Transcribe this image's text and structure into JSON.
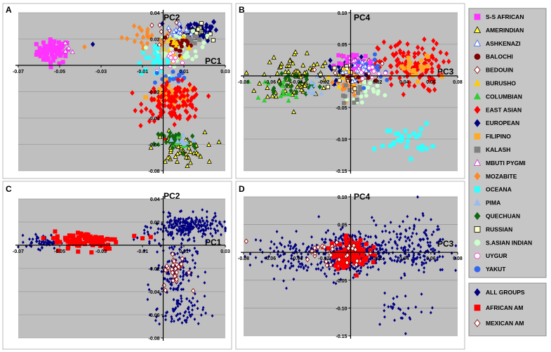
{
  "panel_labels": [
    "A",
    "B",
    "C",
    "D"
  ],
  "legend_main": [
    {
      "label": "S-S AFRICAN",
      "icon": "square",
      "color": "#ff33ff",
      "stroke": "#ff33ff"
    },
    {
      "label": "AMERINDIAN",
      "icon": "triangle",
      "color": "#ffff33",
      "stroke": "#000000"
    },
    {
      "label": "ASHKENAZI",
      "icon": "triangle",
      "color": "#ffffff",
      "stroke": "#3366ff"
    },
    {
      "label": "BALOCHI",
      "icon": "circle",
      "color": "#800000",
      "stroke": "#800000"
    },
    {
      "label": "BEDOUIN",
      "icon": "diamond",
      "color": "#ffffff",
      "stroke": "#800000"
    },
    {
      "label": "BURUSHO",
      "icon": "triangle",
      "color": "#ffcc00",
      "stroke": "#ffcc00"
    },
    {
      "label": "COLUMBIAN",
      "icon": "triangle",
      "color": "#33cc33",
      "stroke": "#33cc33"
    },
    {
      "label": "EAST ASIAN",
      "icon": "diamond",
      "color": "#ff0000",
      "stroke": "#ff0000"
    },
    {
      "label": "EUROPEAN",
      "icon": "diamond",
      "color": "#000080",
      "stroke": "#000080"
    },
    {
      "label": "FILIPINO",
      "icon": "square",
      "color": "#ffaa22",
      "stroke": "#ffaa22"
    },
    {
      "label": "KALASH",
      "icon": "square",
      "color": "#808080",
      "stroke": "#808080"
    },
    {
      "label": "MBUTI PYGMI",
      "icon": "triangle",
      "color": "#ffffff",
      "stroke": "#cc33cc"
    },
    {
      "label": "MOZABITE",
      "icon": "diamond",
      "color": "#ff8822",
      "stroke": "#ff8822"
    },
    {
      "label": "OCEANA",
      "icon": "square",
      "color": "#33ffff",
      "stroke": "#33ffff"
    },
    {
      "label": "PIMA",
      "icon": "triangle",
      "color": "#99bbee",
      "stroke": "#99bbee"
    },
    {
      "label": "QUECHUAN",
      "icon": "diamond",
      "color": "#116611",
      "stroke": "#116611"
    },
    {
      "label": "RUSSIAN",
      "icon": "square",
      "color": "#ffffcc",
      "stroke": "#000000"
    },
    {
      "label": "S.ASIAN INDIAN",
      "icon": "circle",
      "color": "#ccffcc",
      "stroke": "#ccffcc"
    },
    {
      "label": "UYGUR",
      "icon": "circle",
      "color": "#ffffff",
      "stroke": "#ff33cc"
    },
    {
      "label": "YAKUT",
      "icon": "circle",
      "color": "#3366ee",
      "stroke": "#3366ee"
    }
  ],
  "legend_admix": [
    {
      "label": "ALL GROUPS",
      "icon": "diamond",
      "color": "#000080",
      "stroke": "#000080"
    },
    {
      "label": "AFRICAN AM",
      "icon": "square",
      "color": "#ff0000",
      "stroke": "#ff0000"
    },
    {
      "label": "MEXICAN AM",
      "icon": "diamond",
      "color": "#ffffff",
      "stroke": "#800000"
    }
  ],
  "chart_data": [
    {
      "panel": "A",
      "type": "scatter",
      "xlabel": "PC1",
      "ylabel": "PC2",
      "xlim": [
        -0.07,
        0.03
      ],
      "ylim": [
        -0.08,
        0.04
      ],
      "xticks": [
        -0.07,
        -0.05,
        -0.03,
        -0.01,
        0.01,
        0.03
      ],
      "xtick_labels": [
        "-0.07",
        "-0.05",
        "-0.03",
        "-0.01",
        "0.01",
        "0.03"
      ],
      "yticks": [
        -0.08,
        -0.06,
        -0.04,
        -0.02,
        0.02,
        0.04
      ],
      "ytick_labels": [
        "-0.08",
        "-0.06",
        "-0.04",
        "-0.02",
        "0.02",
        "0.04"
      ],
      "clusters": [
        {
          "group": "S-S AFRICAN",
          "cx": -0.053,
          "cy": 0.0105,
          "sx": 0.004,
          "sy": 0.0045,
          "n": 70
        },
        {
          "group": "MBUTI PYGMI",
          "cx": -0.046,
          "cy": 0.012,
          "sx": 0.002,
          "sy": 0.002,
          "n": 4
        },
        {
          "group": "MOZABITE",
          "cx": -0.007,
          "cy": 0.019,
          "sx": 0.006,
          "sy": 0.005,
          "n": 25
        },
        {
          "group": "BEDOUIN",
          "cx": 0.006,
          "cy": 0.024,
          "sx": 0.005,
          "sy": 0.006,
          "n": 25
        },
        {
          "group": "EUROPEAN",
          "cx": 0.017,
          "cy": 0.027,
          "sx": 0.005,
          "sy": 0.004,
          "n": 55
        },
        {
          "group": "RUSSIAN",
          "cx": 0.016,
          "cy": 0.025,
          "sx": 0.003,
          "sy": 0.003,
          "n": 20
        },
        {
          "group": "ASHKENAZI",
          "cx": 0.008,
          "cy": 0.025,
          "sx": 0.003,
          "sy": 0.003,
          "n": 15
        },
        {
          "group": "KALASH",
          "cx": 0.012,
          "cy": 0.02,
          "sx": 0.002,
          "sy": 0.002,
          "n": 10
        },
        {
          "group": "S.ASIAN INDIAN",
          "cx": 0.009,
          "cy": 0.012,
          "sx": 0.006,
          "sy": 0.006,
          "n": 40
        },
        {
          "group": "BALOCHI",
          "cx": 0.008,
          "cy": 0.016,
          "sx": 0.004,
          "sy": 0.004,
          "n": 20
        },
        {
          "group": "BURUSHO",
          "cx": 0.006,
          "cy": 0.013,
          "sx": 0.004,
          "sy": 0.004,
          "n": 15
        },
        {
          "group": "OCEANA",
          "cx": -0.005,
          "cy": 0.003,
          "sx": 0.004,
          "sy": 0.005,
          "n": 25
        },
        {
          "group": "UYGUR",
          "cx": 0.005,
          "cy": 0.003,
          "sx": 0.004,
          "sy": 0.004,
          "n": 10
        },
        {
          "group": "YAKUT",
          "cx": 0.004,
          "cy": -0.01,
          "sx": 0.005,
          "sy": 0.005,
          "n": 20
        },
        {
          "group": "FILIPINO",
          "cx": 0.004,
          "cy": -0.024,
          "sx": 0.006,
          "sy": 0.004,
          "n": 40
        },
        {
          "group": "EAST ASIAN",
          "cx": 0.005,
          "cy": -0.028,
          "sx": 0.007,
          "sy": 0.007,
          "n": 130
        },
        {
          "group": "AMERINDIAN",
          "cx": 0.008,
          "cy": -0.063,
          "sx": 0.006,
          "sy": 0.006,
          "n": 55
        },
        {
          "group": "COLUMBIAN",
          "cx": 0.006,
          "cy": -0.06,
          "sx": 0.004,
          "sy": 0.004,
          "n": 15
        },
        {
          "group": "QUECHUAN",
          "cx": 0.006,
          "cy": -0.058,
          "sx": 0.005,
          "sy": 0.005,
          "n": 25
        },
        {
          "group": "PIMA",
          "cx": 0.008,
          "cy": -0.057,
          "sx": 0.004,
          "sy": 0.003,
          "n": 10
        }
      ],
      "points": [
        {
          "group": "MOZABITE",
          "x": -0.038,
          "y": 0.014
        },
        {
          "group": "EUROPEAN",
          "x": -0.034,
          "y": 0.016
        },
        {
          "group": "MOZABITE",
          "x": -0.02,
          "y": 0.021
        }
      ]
    },
    {
      "panel": "B",
      "type": "scatter",
      "xlabel": "PC3",
      "ylabel": "PC4",
      "xlim": [
        -0.08,
        0.08
      ],
      "ylim": [
        -0.15,
        0.1
      ],
      "xticks": [
        -0.08,
        -0.06,
        -0.04,
        -0.02,
        0.02,
        0.04,
        0.06,
        0.08
      ],
      "xtick_labels": [
        "-0.08",
        "-0.06",
        "-0.04",
        "-0.02",
        "0.02",
        "0.04",
        "0.06",
        "0.08"
      ],
      "yticks": [
        -0.15,
        -0.1,
        -0.05,
        0.05,
        0.1
      ],
      "ytick_labels": [
        "-0.15",
        "-0.10",
        "-0.05",
        "0.05",
        "0.10"
      ],
      "clusters": [
        {
          "group": "AMERINDIAN",
          "cx": -0.04,
          "cy": 0.0,
          "sx": 0.013,
          "sy": 0.02,
          "n": 80
        },
        {
          "group": "COLUMBIAN",
          "cx": -0.05,
          "cy": -0.02,
          "sx": 0.01,
          "sy": 0.01,
          "n": 15
        },
        {
          "group": "QUECHUAN",
          "cx": -0.045,
          "cy": -0.012,
          "sx": 0.012,
          "sy": 0.012,
          "n": 25
        },
        {
          "group": "PIMA",
          "cx": -0.03,
          "cy": -0.02,
          "sx": 0.008,
          "sy": 0.008,
          "n": 10
        },
        {
          "group": "EAST ASIAN",
          "cx": 0.045,
          "cy": 0.015,
          "sx": 0.012,
          "sy": 0.02,
          "n": 120
        },
        {
          "group": "FILIPINO",
          "cx": 0.05,
          "cy": 0.01,
          "sx": 0.008,
          "sy": 0.012,
          "n": 20
        },
        {
          "group": "OCEANA",
          "cx": 0.04,
          "cy": -0.1,
          "sx": 0.01,
          "sy": 0.012,
          "n": 30
        },
        {
          "group": "EUROPEAN",
          "cx": 0.0,
          "cy": 0.01,
          "sx": 0.008,
          "sy": 0.012,
          "n": 40
        },
        {
          "group": "BEDOUIN",
          "cx": 0.0,
          "cy": 0.005,
          "sx": 0.009,
          "sy": 0.012,
          "n": 25
        },
        {
          "group": "MOZABITE",
          "cx": 0.0,
          "cy": -0.01,
          "sx": 0.008,
          "sy": 0.01,
          "n": 20
        },
        {
          "group": "S-S AFRICAN",
          "cx": 0.003,
          "cy": 0.02,
          "sx": 0.007,
          "sy": 0.008,
          "n": 40
        },
        {
          "group": "MBUTI PYGMI",
          "cx": 0.008,
          "cy": 0.012,
          "sx": 0.006,
          "sy": 0.008,
          "n": 15
        },
        {
          "group": "RUSSIAN",
          "cx": 0.0,
          "cy": 0.0,
          "sx": 0.006,
          "sy": 0.01,
          "n": 15
        },
        {
          "group": "S.ASIAN INDIAN",
          "cx": 0.01,
          "cy": -0.02,
          "sx": 0.006,
          "sy": 0.01,
          "n": 25
        },
        {
          "group": "KALASH",
          "cx": 0.0,
          "cy": -0.03,
          "sx": 0.006,
          "sy": 0.008,
          "n": 10
        },
        {
          "group": "YAKUT",
          "cx": 0.02,
          "cy": 0.01,
          "sx": 0.008,
          "sy": 0.01,
          "n": 15
        },
        {
          "group": "UYGUR",
          "cx": 0.012,
          "cy": 0.005,
          "sx": 0.007,
          "sy": 0.008,
          "n": 10
        },
        {
          "group": "BURUSHO",
          "cx": -0.002,
          "cy": 0.0,
          "sx": 0.006,
          "sy": 0.008,
          "n": 10
        },
        {
          "group": "BALOCHI",
          "cx": 0.002,
          "cy": -0.005,
          "sx": 0.006,
          "sy": 0.008,
          "n": 10
        },
        {
          "group": "ASHKENAZI",
          "cx": 0.002,
          "cy": 0.01,
          "sx": 0.006,
          "sy": 0.008,
          "n": 10
        }
      ],
      "points": []
    },
    {
      "panel": "C",
      "type": "scatter",
      "xlabel": "PC1",
      "ylabel": "PC2",
      "xlim": [
        -0.07,
        0.03
      ],
      "ylim": [
        -0.08,
        0.04
      ],
      "xticks": [
        -0.07,
        -0.05,
        -0.03,
        -0.01,
        0.01,
        0.03
      ],
      "xtick_labels": [
        "-0.07",
        "-0.05",
        "-0.03",
        "-0.01",
        "0.01",
        "0.03"
      ],
      "yticks": [
        -0.08,
        -0.06,
        -0.04,
        -0.02,
        0.02,
        0.04
      ],
      "ytick_labels": [
        "-0.08",
        "-0.06",
        "-0.04",
        "-0.02",
        "0.02",
        "0.04"
      ],
      "clusters": [
        {
          "group": "ALL GROUPS",
          "cx": 0.012,
          "cy": 0.016,
          "sx": 0.008,
          "sy": 0.005,
          "n": 230
        },
        {
          "group": "ALL GROUPS",
          "cx": 0.006,
          "cy": -0.02,
          "sx": 0.005,
          "sy": 0.012,
          "n": 130
        },
        {
          "group": "ALL GROUPS",
          "cx": 0.008,
          "cy": -0.058,
          "sx": 0.006,
          "sy": 0.007,
          "n": 70
        },
        {
          "group": "ALL GROUPS",
          "cx": -0.058,
          "cy": 0.003,
          "sx": 0.004,
          "sy": 0.003,
          "n": 55
        },
        {
          "group": "ALL GROUPS",
          "cx": -0.005,
          "cy": 0.008,
          "sx": 0.005,
          "sy": 0.005,
          "n": 15
        },
        {
          "group": "AFRICAN AM",
          "cx": -0.037,
          "cy": 0.004,
          "sx": 0.008,
          "sy": 0.004,
          "n": 95
        },
        {
          "group": "MEXICAN AM",
          "cx": 0.006,
          "cy": -0.022,
          "sx": 0.003,
          "sy": 0.008,
          "n": 30
        }
      ],
      "points": [
        {
          "group": "AFRICAN AM",
          "x": -0.014,
          "y": 0.008
        },
        {
          "group": "AFRICAN AM",
          "x": -0.01,
          "y": 0.006
        },
        {
          "group": "AFRICAN AM",
          "x": -0.006,
          "y": 0.007
        }
      ]
    },
    {
      "panel": "D",
      "type": "scatter",
      "xlabel": "PC3",
      "ylabel": "PC4",
      "xlim": [
        -0.08,
        0.08
      ],
      "ylim": [
        -0.15,
        0.1
      ],
      "xticks": [
        -0.08,
        -0.06,
        -0.04,
        -0.02,
        0.02,
        0.04,
        0.06,
        0.08
      ],
      "xtick_labels": [
        "-0.08",
        "-0.06",
        "-0.04",
        "-0.02",
        "0.02",
        "0.04",
        "0.06",
        "0.08"
      ],
      "yticks": [
        -0.15,
        -0.1,
        -0.05,
        0.05,
        0.1
      ],
      "ytick_labels": [
        "-0.15",
        "-0.10",
        "-0.05",
        "0.05",
        "0.10"
      ],
      "clusters": [
        {
          "group": "ALL GROUPS",
          "cx": 0.0,
          "cy": 0.0,
          "sx": 0.012,
          "sy": 0.018,
          "n": 350
        },
        {
          "group": "ALL GROUPS",
          "cx": -0.045,
          "cy": -0.005,
          "sx": 0.015,
          "sy": 0.02,
          "n": 110
        },
        {
          "group": "ALL GROUPS",
          "cx": 0.045,
          "cy": 0.01,
          "sx": 0.014,
          "sy": 0.025,
          "n": 180
        },
        {
          "group": "ALL GROUPS",
          "cx": 0.04,
          "cy": -0.1,
          "sx": 0.012,
          "sy": 0.015,
          "n": 30
        },
        {
          "group": "AFRICAN AM",
          "cx": 0.0,
          "cy": -0.002,
          "sx": 0.007,
          "sy": 0.013,
          "n": 110
        },
        {
          "group": "MEXICAN AM",
          "cx": -0.015,
          "cy": 0.0,
          "sx": 0.012,
          "sy": 0.012,
          "n": 30
        }
      ],
      "points": [
        {
          "group": "MEXICAN AM",
          "x": -0.078,
          "y": 0.02
        }
      ]
    }
  ]
}
